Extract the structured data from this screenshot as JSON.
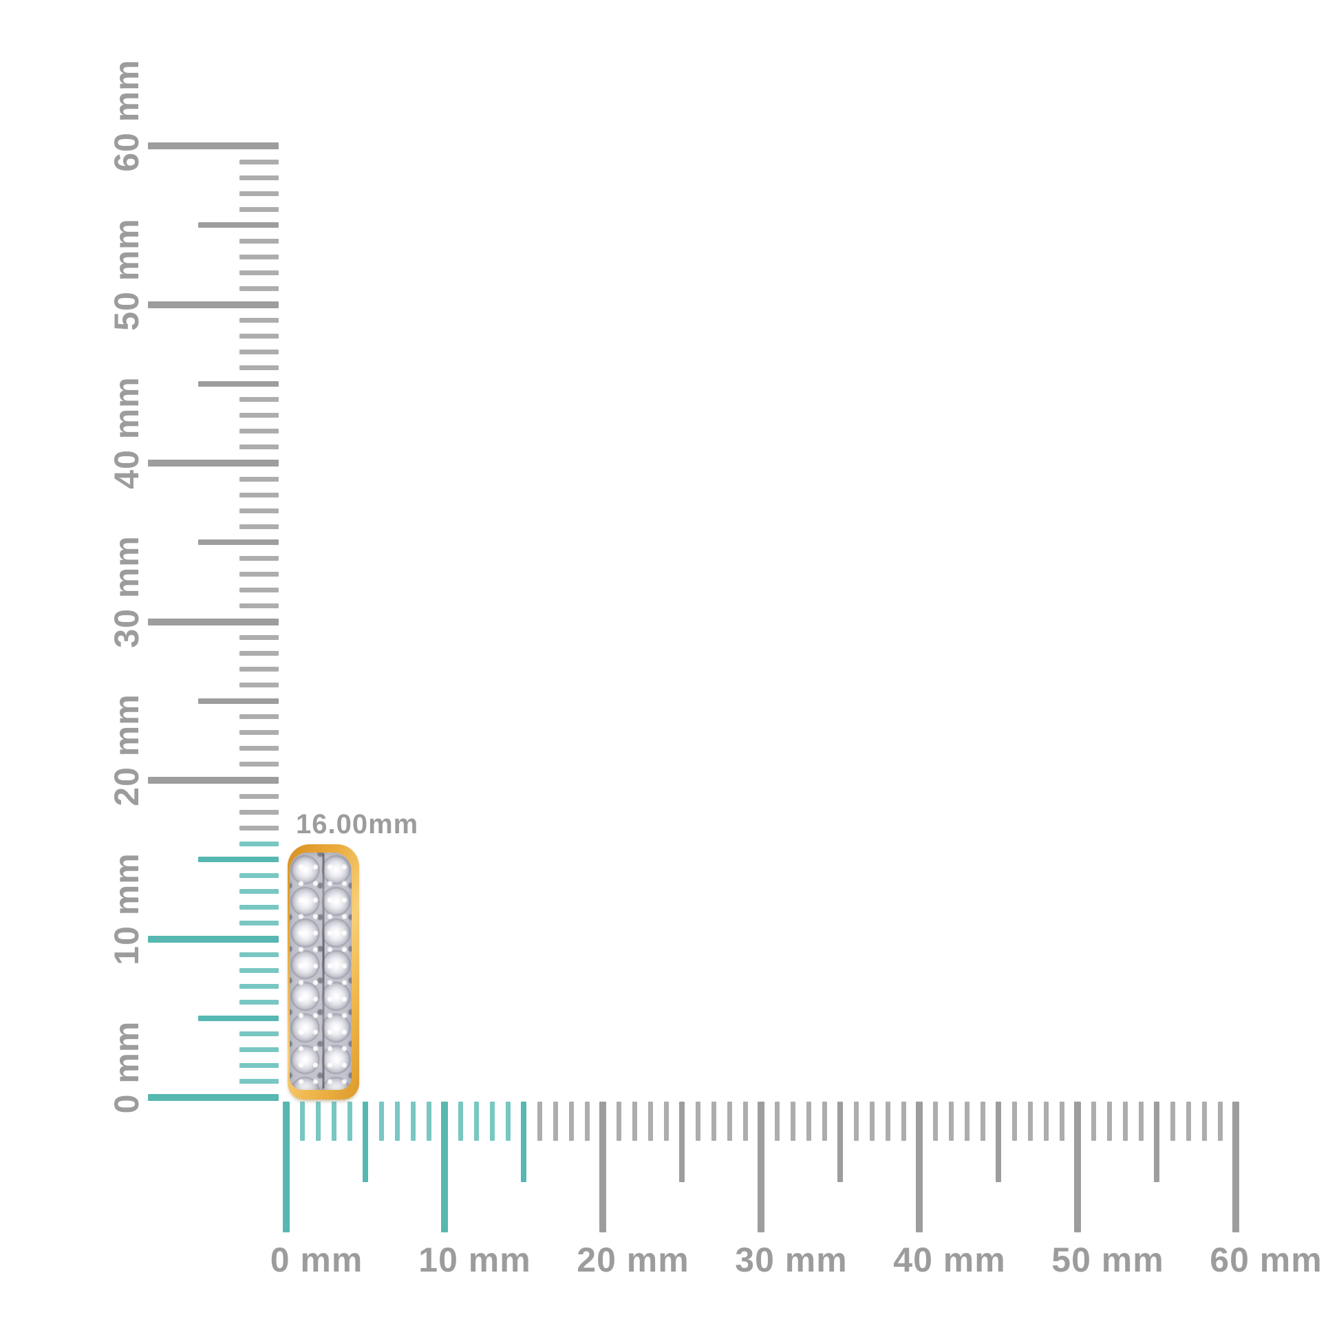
{
  "measurement": {
    "label": "16.00mm"
  },
  "item": {
    "description": "pave diamond hoop earring, side profile, gold rim"
  },
  "rulers": {
    "unit": "mm",
    "vertical": {
      "min_mm": 0,
      "max_mm": 60,
      "minor_step_mm": 1,
      "medium_step_mm": 5,
      "major_step_mm": 10,
      "highlight_until_mm": 16,
      "labels": [
        {
          "mm": 0,
          "text": "0 mm"
        },
        {
          "mm": 10,
          "text": "10 mm"
        },
        {
          "mm": 20,
          "text": "20 mm"
        },
        {
          "mm": 30,
          "text": "30 mm"
        },
        {
          "mm": 40,
          "text": "40 mm"
        },
        {
          "mm": 50,
          "text": "50 mm"
        },
        {
          "mm": 60,
          "text": "60 mm"
        }
      ]
    },
    "horizontal": {
      "min_mm": 0,
      "max_mm": 60,
      "minor_step_mm": 1,
      "medium_step_mm": 5,
      "major_step_mm": 10,
      "highlight_until_mm": 15,
      "labels": [
        {
          "mm": 0,
          "text": "0 mm"
        },
        {
          "mm": 10,
          "text": "10 mm"
        },
        {
          "mm": 20,
          "text": "20 mm"
        },
        {
          "mm": 30,
          "text": "30 mm"
        },
        {
          "mm": 40,
          "text": "40 mm"
        },
        {
          "mm": 50,
          "text": "50 mm"
        },
        {
          "mm": 60,
          "text": "60 mm"
        }
      ]
    }
  },
  "colors": {
    "background": "#ffffff",
    "tick_gray_major": "#9d9d9d",
    "tick_gray_minor": "#adadad",
    "tick_teal_major": "#57b7b1",
    "tick_teal_minor": "#79c7c2",
    "ruler_label": "#9c9c9c",
    "gold": "#eaa939",
    "diamond": "#dedee5"
  }
}
